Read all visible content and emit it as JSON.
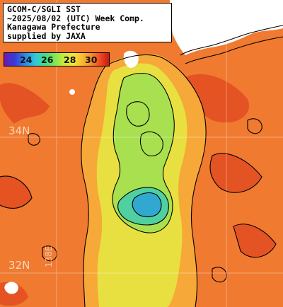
{
  "title": {
    "lines": [
      "GCOM-C/SGLI SST",
      "~2025/08/02 (UTC) Week Comp.",
      "Kanagawa Prefecture",
      "supplied by JAXA"
    ]
  },
  "colorbar": {
    "ticks": [
      "24",
      "26",
      "28",
      "30"
    ],
    "colors": [
      "#6a1bb0",
      "#3a3ad8",
      "#2a8ae8",
      "#30c8d8",
      "#4ee070",
      "#b8ec3c",
      "#f4e43a",
      "#f6a030",
      "#ee4820",
      "#c81818"
    ]
  },
  "grid": {
    "lat_labels": [
      "34N",
      "32N"
    ],
    "lon_labels": [
      "138E"
    ]
  },
  "colors": {
    "land": "#ffffff",
    "warm_sea": "#f07a30",
    "hot_sea": "#e24a20",
    "mid_sea": "#f6a838",
    "cool_sea": "#e8e040",
    "cooler_sea": "#a8e050",
    "cold_sea": "#50d0a0",
    "coldest_sea": "#30a8d0",
    "contour": "#000000"
  }
}
